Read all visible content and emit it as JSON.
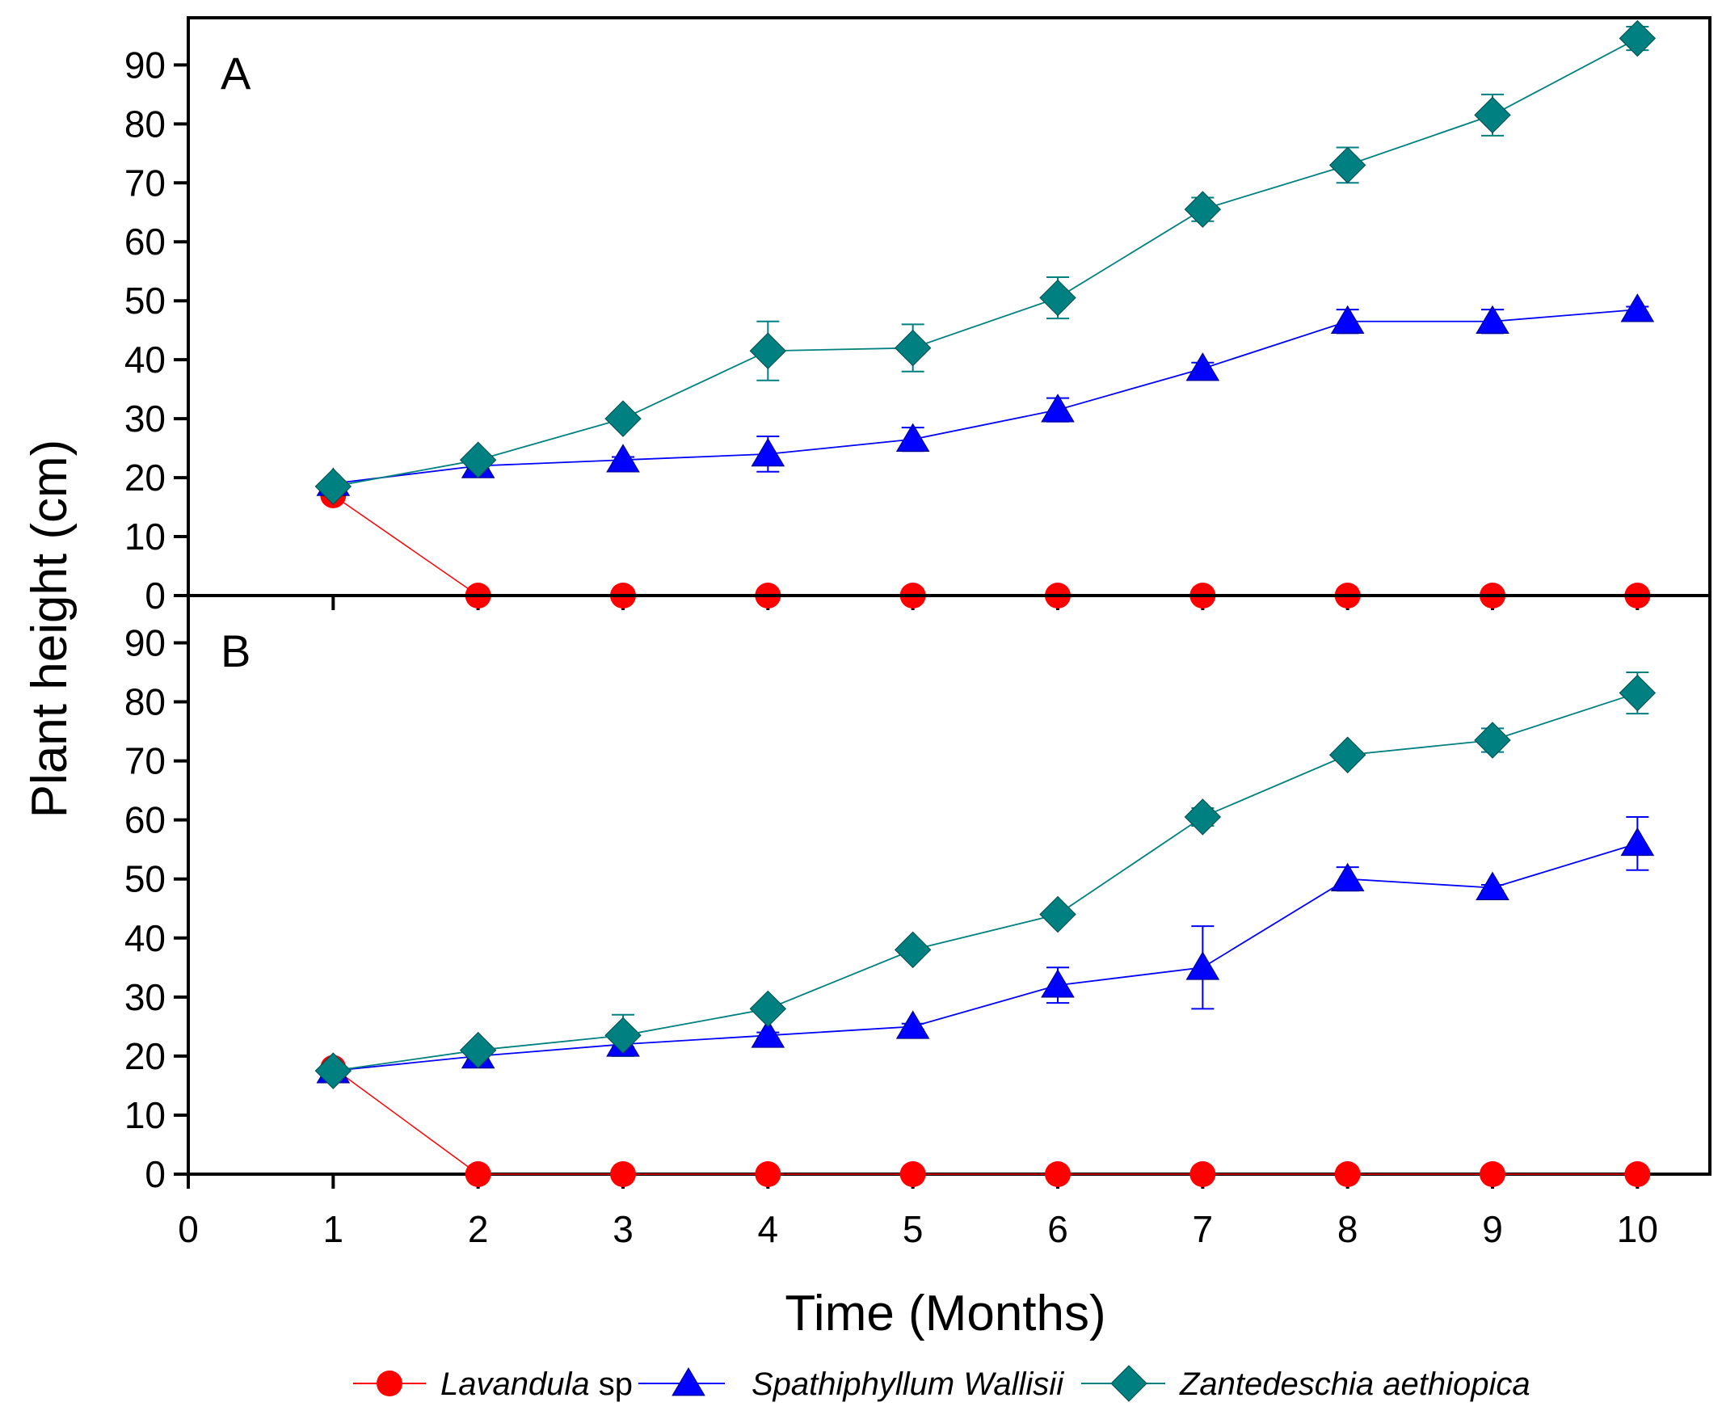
{
  "chart_data": {
    "type": "line",
    "ylabel": "Plant height (cm)",
    "xlabel": "Time (Months)",
    "xlim": [
      0,
      10.5
    ],
    "x_ticks": [
      "0",
      "1",
      "2",
      "3",
      "4",
      "5",
      "6",
      "7",
      "8",
      "9",
      "10"
    ],
    "legend_position": "bottom",
    "legend": [
      {
        "name": "Lavandula",
        "suffix": " sp",
        "color": "#ff0000",
        "marker": "circle"
      },
      {
        "name": "Spathiphyllum Wallisii",
        "suffix": "",
        "color": "#0000ff",
        "marker": "triangle"
      },
      {
        "name": "Zantedeschia aethiopica",
        "suffix": "",
        "color": "#008080",
        "marker": "diamond"
      }
    ],
    "panels": [
      {
        "label": "A",
        "ylim": [
          0,
          98
        ],
        "y_ticks": [
          "0",
          "10",
          "20",
          "30",
          "40",
          "50",
          "60",
          "70",
          "80",
          "90"
        ],
        "x": [
          1,
          2,
          3,
          4,
          5,
          6,
          7,
          8,
          9,
          10
        ],
        "series": [
          {
            "name": "Lavandula sp",
            "values": [
              17,
              0,
              0,
              0,
              0,
              0,
              0,
              0,
              0,
              0
            ],
            "errors": [
              0,
              0,
              0,
              0,
              0,
              0,
              0,
              0,
              0,
              0
            ]
          },
          {
            "name": "Spathiphyllum Wallisii",
            "values": [
              19,
              22,
              23,
              24,
              26.5,
              31.5,
              38.5,
              46.5,
              46.5,
              48.5
            ],
            "errors": [
              0.5,
              0.5,
              0.5,
              3,
              2,
              2,
              1,
              2,
              2,
              0.5
            ]
          },
          {
            "name": "Zantedeschia aethiopica",
            "values": [
              18.5,
              23,
              30,
              41.5,
              42,
              50.5,
              65.5,
              73,
              81.5,
              94.5
            ],
            "errors": [
              0.5,
              1,
              1,
              5,
              4,
              3.5,
              2,
              3,
              3.5,
              2
            ]
          }
        ]
      },
      {
        "label": "B",
        "ylim": [
          0,
          98
        ],
        "y_ticks": [
          "0",
          "10",
          "20",
          "30",
          "40",
          "50",
          "60",
          "70",
          "80",
          "90"
        ],
        "x": [
          1,
          2,
          3,
          4,
          5,
          6,
          7,
          8,
          9,
          10
        ],
        "series": [
          {
            "name": "Lavandula sp",
            "values": [
              18,
              0,
              0,
              0,
              0,
              0,
              0,
              0,
              0,
              0
            ],
            "errors": [
              0,
              0,
              0,
              0,
              0,
              0,
              0,
              0,
              0,
              0
            ]
          },
          {
            "name": "Spathiphyllum Wallisii",
            "values": [
              17.5,
              20,
              22,
              23.5,
              25,
              32,
              35,
              50,
              48.5,
              56
            ],
            "errors": [
              0.5,
              0.5,
              0.5,
              0.5,
              0.5,
              3,
              7,
              2,
              0.5,
              4.5
            ]
          },
          {
            "name": "Zantedeschia aethiopica",
            "values": [
              17.5,
              21,
              23.5,
              28,
              38,
              44,
              60.5,
              71,
              73.5,
              81.5
            ],
            "errors": [
              0.5,
              0.5,
              3.5,
              0.5,
              0.5,
              0.5,
              1.5,
              0.5,
              2,
              3.5
            ]
          }
        ]
      }
    ]
  }
}
